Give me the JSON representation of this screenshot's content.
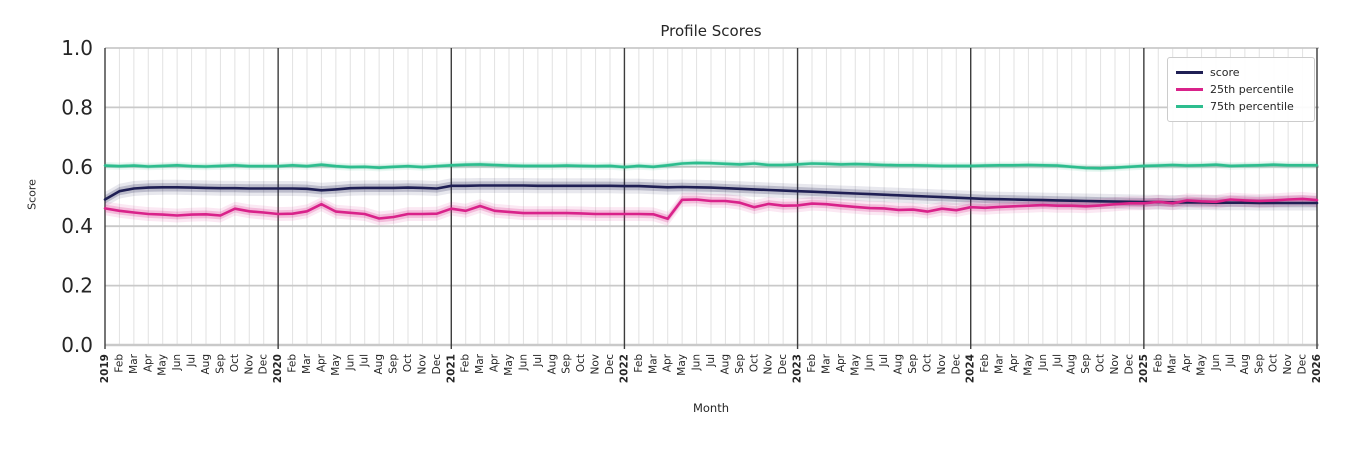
{
  "chart_data": {
    "type": "line",
    "title": "Profile Scores",
    "xlabel": "Month",
    "ylabel": "Score",
    "ylim": [
      0.0,
      1.0
    ],
    "ytick_labels": [
      "0.0",
      "0.2",
      "0.4",
      "0.6",
      "0.8",
      "1.0"
    ],
    "grid": true,
    "legend_position": "upper right",
    "x_labels": [
      "2019",
      "Feb",
      "Mar",
      "Apr",
      "May",
      "Jun",
      "Jul",
      "Aug",
      "Sep",
      "Oct",
      "Nov",
      "Dec",
      "2020",
      "Feb",
      "Mar",
      "Apr",
      "May",
      "Jun",
      "Jul",
      "Aug",
      "Sep",
      "Oct",
      "Nov",
      "Dec",
      "2021",
      "Feb",
      "Mar",
      "Apr",
      "May",
      "Jun",
      "Jul",
      "Aug",
      "Sep",
      "Oct",
      "Nov",
      "Dec",
      "2022",
      "Feb",
      "Mar",
      "Apr",
      "May",
      "Jun",
      "Jul",
      "Aug",
      "Sep",
      "Oct",
      "Nov",
      "Dec",
      "2023",
      "Feb",
      "Mar",
      "Apr",
      "May",
      "Jun",
      "Jul",
      "Aug",
      "Sep",
      "Oct",
      "Nov",
      "Dec",
      "2024",
      "Feb",
      "Mar",
      "Apr",
      "May",
      "Jun",
      "Jul",
      "Aug",
      "Sep",
      "Oct",
      "Nov",
      "Dec",
      "2025",
      "Feb",
      "Mar",
      "Apr",
      "May",
      "Jun",
      "Jul",
      "Aug",
      "Sep",
      "Oct",
      "Nov",
      "Dec",
      "2026"
    ],
    "series": [
      {
        "name": "score",
        "color": "#1f1f54",
        "band_halfwidth": 0.014,
        "values": [
          0.49,
          0.518,
          0.527,
          0.53,
          0.531,
          0.531,
          0.53,
          0.529,
          0.528,
          0.528,
          0.527,
          0.527,
          0.527,
          0.527,
          0.526,
          0.521,
          0.524,
          0.528,
          0.529,
          0.529,
          0.529,
          0.53,
          0.529,
          0.527,
          0.536,
          0.536,
          0.537,
          0.537,
          0.537,
          0.537,
          0.536,
          0.536,
          0.536,
          0.536,
          0.536,
          0.536,
          0.535,
          0.535,
          0.533,
          0.531,
          0.532,
          0.531,
          0.53,
          0.528,
          0.526,
          0.524,
          0.522,
          0.52,
          0.518,
          0.516,
          0.514,
          0.512,
          0.51,
          0.508,
          0.506,
          0.504,
          0.502,
          0.5,
          0.498,
          0.496,
          0.494,
          0.492,
          0.491,
          0.49,
          0.489,
          0.488,
          0.487,
          0.486,
          0.485,
          0.484,
          0.483,
          0.482,
          0.481,
          0.481,
          0.48,
          0.48,
          0.48,
          0.479,
          0.479,
          0.479,
          0.478,
          0.478,
          0.478,
          0.478,
          0.478
        ]
      },
      {
        "name": "25th percentile",
        "color": "#d9228a",
        "band_halfwidth": 0.013,
        "values": [
          0.46,
          0.452,
          0.446,
          0.441,
          0.439,
          0.436,
          0.439,
          0.44,
          0.436,
          0.459,
          0.45,
          0.446,
          0.441,
          0.442,
          0.45,
          0.474,
          0.449,
          0.445,
          0.441,
          0.426,
          0.431,
          0.441,
          0.441,
          0.442,
          0.459,
          0.452,
          0.468,
          0.452,
          0.448,
          0.444,
          0.444,
          0.444,
          0.444,
          0.443,
          0.441,
          0.441,
          0.441,
          0.441,
          0.44,
          0.425,
          0.489,
          0.49,
          0.485,
          0.485,
          0.479,
          0.464,
          0.475,
          0.469,
          0.47,
          0.476,
          0.474,
          0.469,
          0.465,
          0.461,
          0.46,
          0.455,
          0.456,
          0.449,
          0.459,
          0.454,
          0.464,
          0.462,
          0.465,
          0.467,
          0.469,
          0.471,
          0.469,
          0.469,
          0.467,
          0.47,
          0.474,
          0.477,
          0.477,
          0.482,
          0.477,
          0.487,
          0.484,
          0.482,
          0.49,
          0.487,
          0.485,
          0.487,
          0.49,
          0.492,
          0.488
        ]
      },
      {
        "name": "75th percentile",
        "color": "#2dbd8e",
        "band_halfwidth": 0.007,
        "values": [
          0.604,
          0.602,
          0.604,
          0.601,
          0.603,
          0.605,
          0.602,
          0.601,
          0.603,
          0.605,
          0.602,
          0.602,
          0.602,
          0.605,
          0.602,
          0.607,
          0.602,
          0.599,
          0.6,
          0.597,
          0.6,
          0.602,
          0.599,
          0.602,
          0.605,
          0.607,
          0.608,
          0.606,
          0.604,
          0.603,
          0.603,
          0.603,
          0.604,
          0.603,
          0.602,
          0.603,
          0.599,
          0.603,
          0.6,
          0.605,
          0.611,
          0.613,
          0.612,
          0.61,
          0.608,
          0.611,
          0.606,
          0.606,
          0.608,
          0.611,
          0.61,
          0.608,
          0.609,
          0.608,
          0.606,
          0.605,
          0.605,
          0.604,
          0.603,
          0.603,
          0.603,
          0.604,
          0.605,
          0.605,
          0.606,
          0.605,
          0.604,
          0.6,
          0.596,
          0.595,
          0.597,
          0.6,
          0.603,
          0.604,
          0.606,
          0.604,
          0.605,
          0.607,
          0.603,
          0.604,
          0.605,
          0.607,
          0.605,
          0.605,
          0.605
        ]
      }
    ],
    "colors": {
      "grid_minor": "#e2e2e2",
      "grid_major_h": "#c9c9c9",
      "year_line": "#3c3c3c",
      "text": "#262626",
      "right_spine": "#cccccc"
    }
  }
}
